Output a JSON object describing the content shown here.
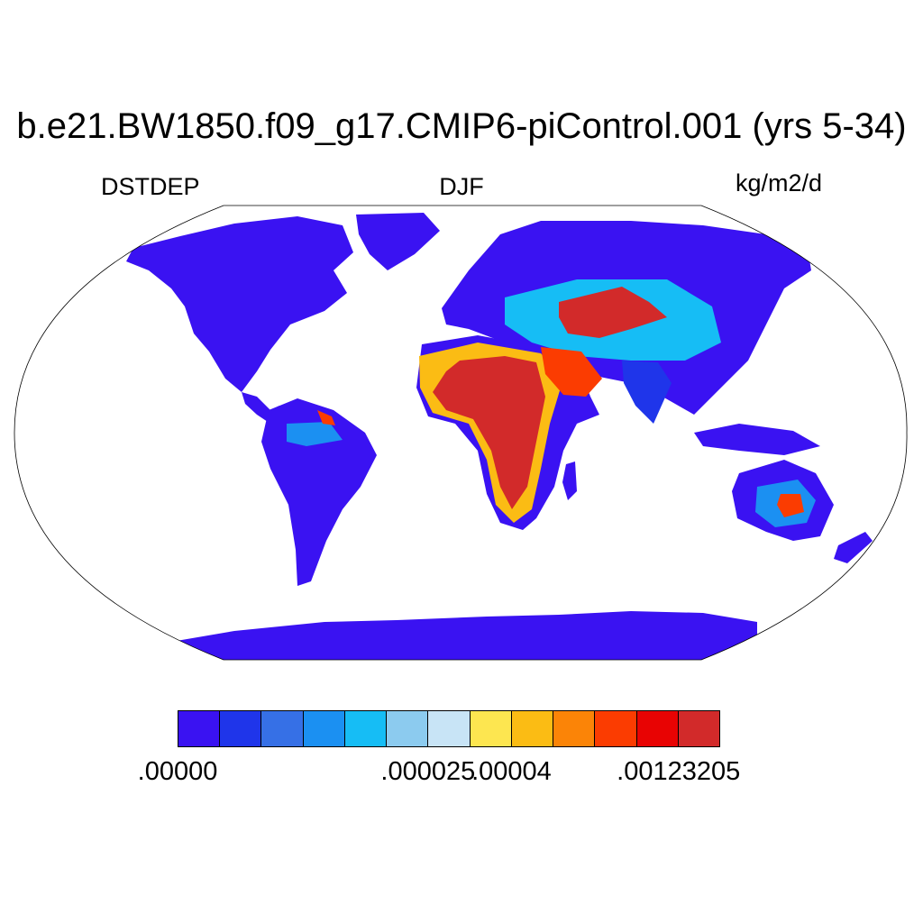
{
  "title": "b.e21.BW1850.f09_g17.CMIP6-piControl.001 (yrs 5-34)",
  "left_label": "DSTDEP",
  "center_label": "DJF",
  "units_label": "kg/m2/d",
  "colorbar": {
    "colors": [
      "#3a12f2",
      "#1f35ea",
      "#3670e6",
      "#1b90f2",
      "#16bdf5",
      "#8ccbef",
      "#c8e4f6",
      "#fde650",
      "#fbbc14",
      "#fb8407",
      "#fb3c01",
      "#e80303",
      "#d22a2a"
    ],
    "tick_labels": [
      {
        "text": ".00000",
        "boundary": 0
      },
      {
        "text": ".000025",
        "boundary": 6
      },
      {
        "text": ".00004",
        "boundary": 8
      },
      {
        "text": ".00123205",
        "boundary": 12
      }
    ]
  }
}
